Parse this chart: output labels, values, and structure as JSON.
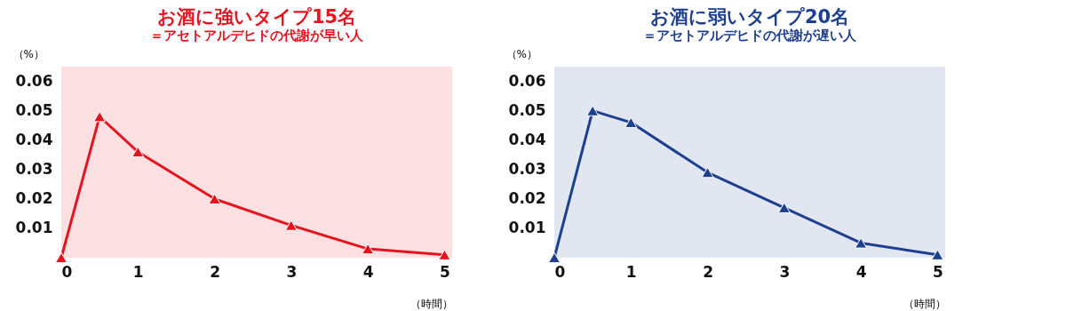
{
  "chart_data": [
    {
      "type": "line",
      "title": "お酒に強いタイプ15名",
      "subtitle": "＝アセトアルデヒドの代謝が早い人",
      "xlabel": "（時間）",
      "ylabel": "（%）",
      "x": [
        0,
        0.5,
        1,
        2,
        3,
        4,
        5
      ],
      "xlim": [
        0,
        5.1
      ],
      "xticks": [
        0,
        1,
        2,
        3,
        4,
        5
      ],
      "ylim": [
        0,
        0.065
      ],
      "yticks": [
        0.01,
        0.02,
        0.03,
        0.04,
        0.05,
        0.06
      ],
      "marker": "triangle",
      "grid": false,
      "series": [
        {
          "color": "#e8121f",
          "values": [
            0,
            0.048,
            0.036,
            0.02,
            0.011,
            0.003,
            0.001
          ]
        }
      ]
    },
    {
      "type": "line",
      "title": "お酒に弱いタイプ20名",
      "subtitle": "＝アセトアルデヒドの代謝が遅い人",
      "xlabel": "（時間）",
      "ylabel": "（%）",
      "x": [
        0,
        0.5,
        1,
        2,
        3,
        4,
        5
      ],
      "xlim": [
        0,
        5.1
      ],
      "xticks": [
        0,
        1,
        2,
        3,
        4,
        5
      ],
      "ylim": [
        0,
        0.065
      ],
      "yticks": [
        0.01,
        0.02,
        0.03,
        0.04,
        0.05,
        0.06
      ],
      "marker": "triangle",
      "grid": false,
      "series": [
        {
          "color": "#1d3f8f",
          "values": [
            0,
            0.05,
            0.046,
            0.029,
            0.017,
            0.005,
            0.001
          ]
        }
      ]
    }
  ]
}
